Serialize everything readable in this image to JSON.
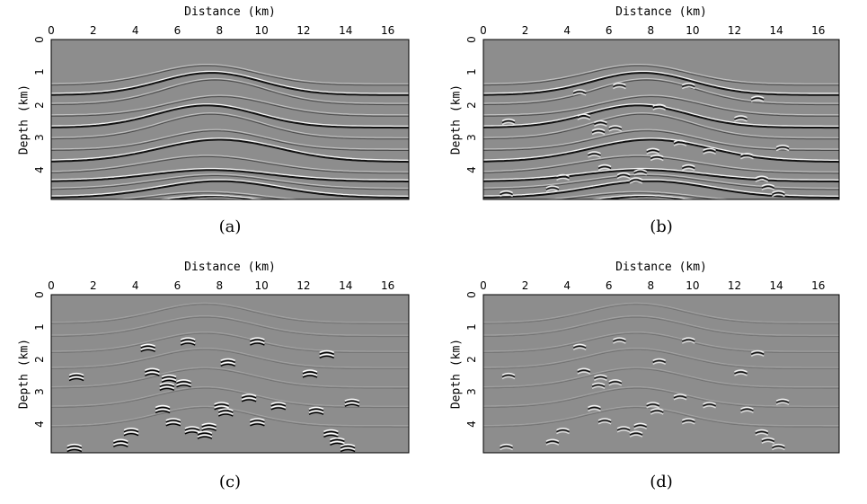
{
  "figure": {
    "x_axis_label": "Distance (km)",
    "y_axis_label": "Depth (km)",
    "x_ticks": [
      "0",
      "2",
      "4",
      "6",
      "8",
      "10",
      "12",
      "14",
      "16"
    ],
    "y_ticks": [
      "0",
      "1",
      "2",
      "3",
      "4"
    ],
    "x_range_km": [
      0,
      17
    ],
    "y_range_km": [
      0,
      4.9
    ],
    "colormap": "gray seismic"
  },
  "panels": [
    {
      "caption": "(a)",
      "content": "smooth layered reflectors"
    },
    {
      "caption": "(b)",
      "content": "reflectors with diffractions"
    },
    {
      "caption": "(c)",
      "content": "diffractions with weak background"
    },
    {
      "caption": "(d)",
      "content": "diffractions with weak background"
    }
  ],
  "diffraction_points_km": [
    [
      1.2,
      2.55
    ],
    [
      3.3,
      4.6
    ],
    [
      3.8,
      4.25
    ],
    [
      4.6,
      1.65
    ],
    [
      4.8,
      2.4
    ],
    [
      5.3,
      3.55
    ],
    [
      5.6,
      2.6
    ],
    [
      5.5,
      2.85
    ],
    [
      5.8,
      3.95
    ],
    [
      6.3,
      2.75
    ],
    [
      6.5,
      1.45
    ],
    [
      6.7,
      4.2
    ],
    [
      7.3,
      4.35
    ],
    [
      7.5,
      4.1
    ],
    [
      8.1,
      3.45
    ],
    [
      8.3,
      3.65
    ],
    [
      8.4,
      2.1
    ],
    [
      9.4,
      3.2
    ],
    [
      9.8,
      1.45
    ],
    [
      9.8,
      3.95
    ],
    [
      10.8,
      3.45
    ],
    [
      12.3,
      2.45
    ],
    [
      12.6,
      3.6
    ],
    [
      13.1,
      1.85
    ],
    [
      13.3,
      4.3
    ],
    [
      13.6,
      4.55
    ],
    [
      14.1,
      4.75
    ],
    [
      14.3,
      3.35
    ],
    [
      1.1,
      4.75
    ]
  ]
}
